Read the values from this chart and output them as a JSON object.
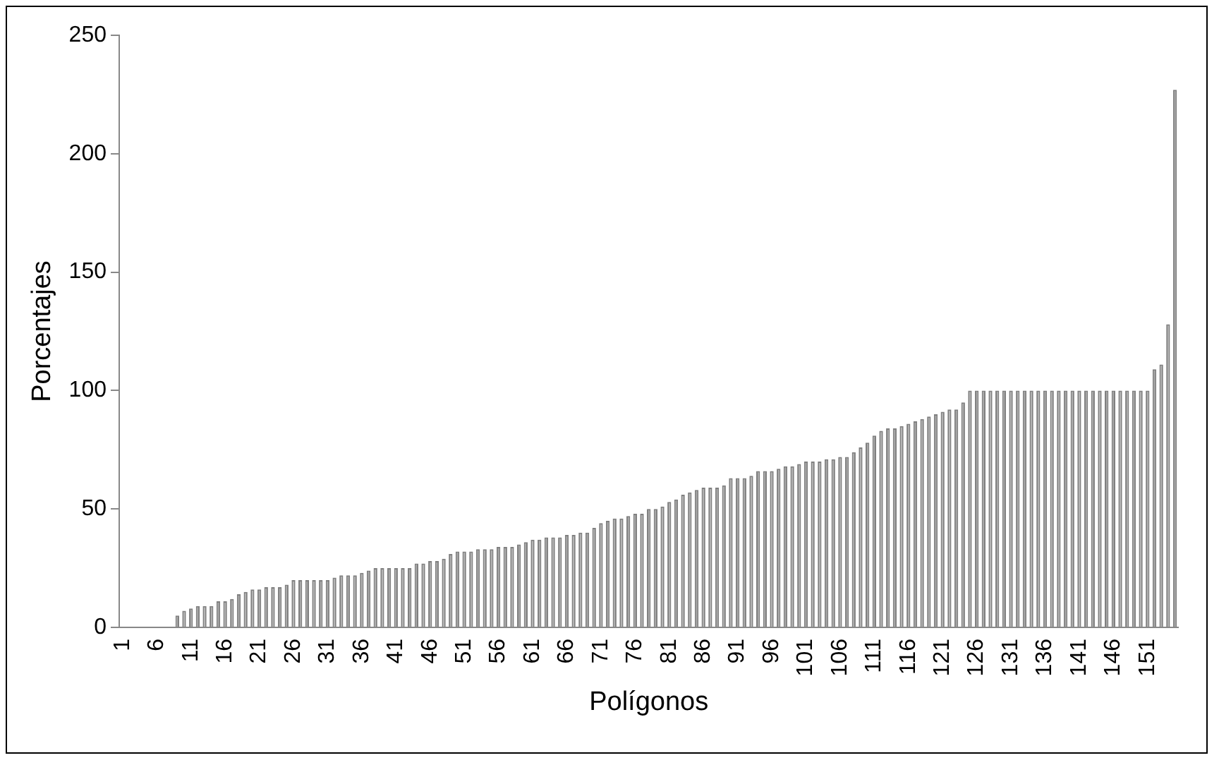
{
  "chart_data": {
    "type": "bar",
    "xlabel": "Polígonos",
    "ylabel": "Porcentajes",
    "categories": [
      "1",
      null,
      null,
      null,
      null,
      "6",
      null,
      null,
      null,
      null,
      "11",
      null,
      null,
      null,
      null,
      "16",
      null,
      null,
      null,
      null,
      "21",
      null,
      null,
      null,
      null,
      "26",
      null,
      null,
      null,
      null,
      "31",
      null,
      null,
      null,
      null,
      "36",
      null,
      null,
      null,
      null,
      "41",
      null,
      null,
      null,
      null,
      "46",
      null,
      null,
      null,
      null,
      "51",
      null,
      null,
      null,
      null,
      "56",
      null,
      null,
      null,
      null,
      "61",
      null,
      null,
      null,
      null,
      "66",
      null,
      null,
      null,
      null,
      "71",
      null,
      null,
      null,
      null,
      "76",
      null,
      null,
      null,
      null,
      "81",
      null,
      null,
      null,
      null,
      "86",
      null,
      null,
      null,
      null,
      "91",
      null,
      null,
      null,
      null,
      "96",
      null,
      null,
      null,
      null,
      "101",
      null,
      null,
      null,
      null,
      "106",
      null,
      null,
      null,
      null,
      "111",
      null,
      null,
      null,
      null,
      "116",
      null,
      null,
      null,
      null,
      "121",
      null,
      null,
      null,
      null,
      "126",
      null,
      null,
      null,
      null,
      "131",
      null,
      null,
      null,
      null,
      "136",
      null,
      null,
      null,
      null,
      "141",
      null,
      null,
      null,
      null,
      "146",
      null,
      null,
      null,
      null,
      "151",
      null,
      null,
      null,
      null
    ],
    "values": [
      0,
      0,
      0,
      0,
      0,
      0,
      0,
      0,
      5,
      7,
      8,
      9,
      9,
      9,
      11,
      11,
      12,
      14,
      15,
      16,
      16,
      17,
      17,
      17,
      18,
      20,
      20,
      20,
      20,
      20,
      20,
      21,
      22,
      22,
      22,
      23,
      24,
      25,
      25,
      25,
      25,
      25,
      25,
      27,
      27,
      28,
      28,
      29,
      31,
      32,
      32,
      32,
      33,
      33,
      33,
      34,
      34,
      34,
      35,
      36,
      37,
      37,
      38,
      38,
      38,
      39,
      39,
      40,
      40,
      42,
      44,
      45,
      46,
      46,
      47,
      48,
      48,
      50,
      50,
      51,
      53,
      54,
      56,
      57,
      58,
      59,
      59,
      59,
      60,
      63,
      63,
      63,
      64,
      66,
      66,
      66,
      67,
      68,
      68,
      69,
      70,
      70,
      70,
      71,
      71,
      72,
      72,
      74,
      76,
      78,
      81,
      83,
      84,
      84,
      85,
      86,
      87,
      88,
      89,
      90,
      91,
      92,
      92,
      95,
      100,
      100,
      100,
      100,
      100,
      100,
      100,
      100,
      100,
      100,
      100,
      100,
      100,
      100,
      100,
      100,
      100,
      100,
      100,
      100,
      100,
      100,
      100,
      100,
      100,
      100,
      100,
      109,
      111,
      128,
      227
    ],
    "color": "#a6a6a6",
    "ylim": [
      0,
      250
    ],
    "yticks": [
      0,
      50,
      100,
      150,
      200,
      250
    ],
    "grid": false,
    "legend": false
  }
}
